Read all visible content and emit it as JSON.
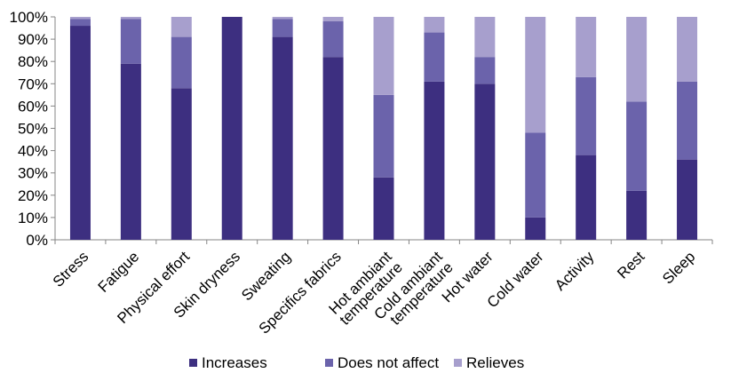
{
  "chart_data": {
    "type": "bar",
    "stacked": true,
    "categories": [
      [
        "Stress"
      ],
      [
        "Fatigue"
      ],
      [
        "Physical effort"
      ],
      [
        "Skin dryness"
      ],
      [
        "Sweating"
      ],
      [
        "Specifics fabrics"
      ],
      [
        "Hot ambiant",
        "temperature"
      ],
      [
        "Cold ambiant",
        "temperature"
      ],
      [
        "Hot water"
      ],
      [
        "Cold water"
      ],
      [
        "Activity"
      ],
      [
        "Rest"
      ],
      [
        "Sleep"
      ]
    ],
    "series": [
      {
        "name": "Increases",
        "color": "#3d2f80",
        "values": [
          96,
          79,
          68,
          100,
          91,
          82,
          28,
          71,
          70,
          10,
          38,
          22,
          36
        ]
      },
      {
        "name": "Does not affect",
        "color": "#6b63ab",
        "values": [
          3,
          20,
          23,
          0,
          8,
          16,
          37,
          22,
          12,
          38,
          35,
          40,
          35
        ]
      },
      {
        "name": "Relieves",
        "color": "#a79fcd",
        "values": [
          1,
          1,
          9,
          0,
          1,
          2,
          35,
          7,
          18,
          52,
          27,
          38,
          29
        ]
      }
    ],
    "y_ticks": [
      "0%",
      "10%",
      "20%",
      "30%",
      "40%",
      "50%",
      "60%",
      "70%",
      "80%",
      "90%",
      "100%"
    ],
    "ylim": [
      0,
      100
    ],
    "legend_position": "bottom",
    "grid": false
  }
}
